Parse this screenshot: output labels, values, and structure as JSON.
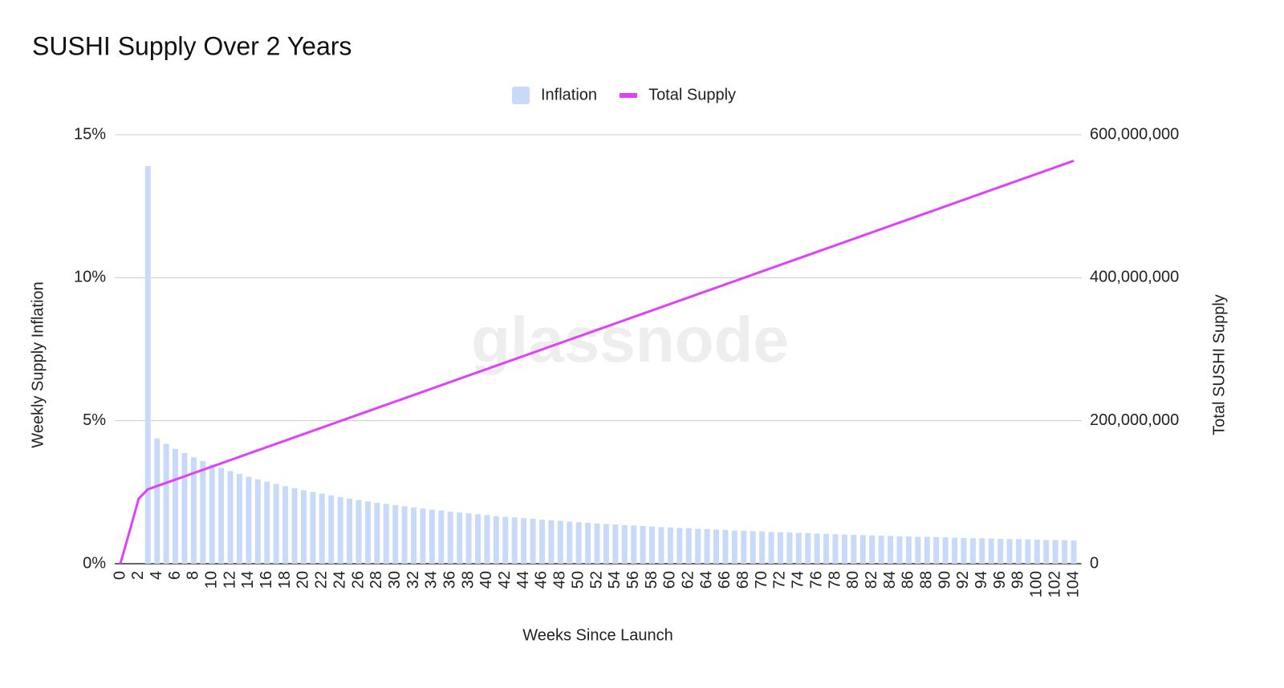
{
  "chart_data": {
    "type": "bar_line",
    "title": "SUSHI Supply Over 2 Years",
    "watermark": "glassnode",
    "x_label": "Weeks Since Launch",
    "y_label": "Weekly Supply Inflation",
    "y2_label": "Total SUSHI Supply",
    "categories": [
      "0",
      null,
      "2",
      null,
      "4",
      null,
      "6",
      null,
      "8",
      null,
      "10",
      null,
      "12",
      null,
      "14",
      null,
      "16",
      null,
      "18",
      null,
      "20",
      null,
      "22",
      null,
      "24",
      null,
      "26",
      null,
      "28",
      null,
      "30",
      null,
      "32",
      null,
      "34",
      null,
      "36",
      null,
      "38",
      null,
      "40",
      null,
      "42",
      null,
      "44",
      null,
      "46",
      null,
      "48",
      null,
      "50",
      null,
      "52",
      null,
      "54",
      null,
      "56",
      null,
      "58",
      null,
      "60",
      null,
      "62",
      null,
      "64",
      null,
      "66",
      null,
      "68",
      null,
      "70",
      null,
      "72",
      null,
      "74",
      null,
      "76",
      null,
      "78",
      null,
      "80",
      null,
      "82",
      null,
      "84",
      null,
      "86",
      null,
      "88",
      null,
      "90",
      null,
      "92",
      null,
      "94",
      null,
      "96",
      null,
      "98",
      null,
      "100",
      null,
      "102",
      null,
      "104"
    ],
    "series": [
      {
        "name": "Inflation",
        "type": "bar",
        "color": "#c9daf8",
        "values": [
          null,
          null,
          null,
          13.9,
          4.38,
          4.19,
          4.02,
          3.87,
          3.72,
          3.59,
          3.47,
          3.35,
          3.24,
          3.14,
          3.04,
          2.95,
          2.87,
          2.79,
          2.71,
          2.64,
          2.57,
          2.51,
          2.45,
          2.39,
          2.33,
          2.28,
          2.23,
          2.18,
          2.13,
          2.09,
          2.05,
          2.01,
          1.97,
          1.93,
          1.89,
          1.86,
          1.82,
          1.79,
          1.76,
          1.73,
          1.7,
          1.67,
          1.64,
          1.62,
          1.59,
          1.57,
          1.54,
          1.52,
          1.5,
          1.47,
          1.45,
          1.43,
          1.41,
          1.39,
          1.37,
          1.35,
          1.34,
          1.32,
          1.3,
          1.28,
          1.27,
          1.25,
          1.24,
          1.22,
          1.21,
          1.19,
          1.18,
          1.16,
          1.15,
          1.14,
          1.13,
          1.11,
          1.1,
          1.09,
          1.08,
          1.07,
          1.05,
          1.04,
          1.03,
          1.02,
          1.01,
          1.0,
          0.99,
          0.98,
          0.97,
          0.96,
          0.95,
          0.94,
          0.94,
          0.93,
          0.92,
          0.91,
          0.9,
          0.89,
          0.89,
          0.88,
          0.87,
          0.86,
          0.86,
          0.85,
          0.84,
          0.83,
          0.83,
          0.82,
          0.81
        ]
      },
      {
        "name": "Total Supply",
        "type": "line",
        "axis": "y2",
        "color": "#e040fb",
        "values": [
          0,
          45000000,
          91000000,
          104000000,
          108550000,
          113100000,
          117650000,
          122200000,
          126750000,
          131300000,
          135850000,
          140400000,
          144950000,
          149500000,
          154050000,
          158600000,
          163150000,
          167700000,
          172250000,
          176800000,
          181350000,
          185900000,
          190450000,
          195000000,
          199550000,
          204100000,
          208650000,
          213200000,
          217750000,
          222300000,
          226850000,
          231400000,
          235950000,
          240500000,
          245050000,
          249600000,
          254150000,
          258700000,
          263250000,
          267800000,
          272350000,
          276900000,
          281450000,
          286000000,
          290550000,
          295100000,
          299650000,
          304200000,
          308750000,
          313300000,
          317850000,
          322400000,
          326950000,
          331500000,
          336050000,
          340600000,
          345150000,
          349700000,
          354250000,
          358800000,
          363350000,
          367900000,
          372450000,
          377000000,
          381550000,
          386100000,
          390650000,
          395200000,
          399750000,
          404300000,
          408850000,
          413400000,
          417950000,
          422500000,
          427050000,
          431600000,
          436150000,
          440700000,
          445250000,
          449800000,
          454350000,
          458900000,
          463450000,
          468000000,
          472550000,
          477100000,
          481650000,
          486200000,
          490750000,
          495300000,
          499850000,
          504400000,
          508950000,
          513500000,
          518050000,
          522600000,
          527150000,
          531700000,
          536250000,
          540800000,
          545350000,
          549900000,
          554450000,
          559000000,
          563550000
        ]
      }
    ],
    "ylim": [
      0,
      15
    ],
    "yticks": [
      {
        "value": 0,
        "label": "0%"
      },
      {
        "value": 5,
        "label": "5%"
      },
      {
        "value": 10,
        "label": "10%"
      },
      {
        "value": 15,
        "label": "15%"
      }
    ],
    "y2lim": [
      0,
      600000000
    ],
    "y2ticks": [
      0,
      {
        "value": 200000000,
        "label": "200,000,000"
      },
      {
        "value": 400000000,
        "label": "400,000,000"
      },
      {
        "value": 600000000,
        "label": "600,000,000"
      }
    ],
    "grid": true,
    "legend": "top"
  }
}
